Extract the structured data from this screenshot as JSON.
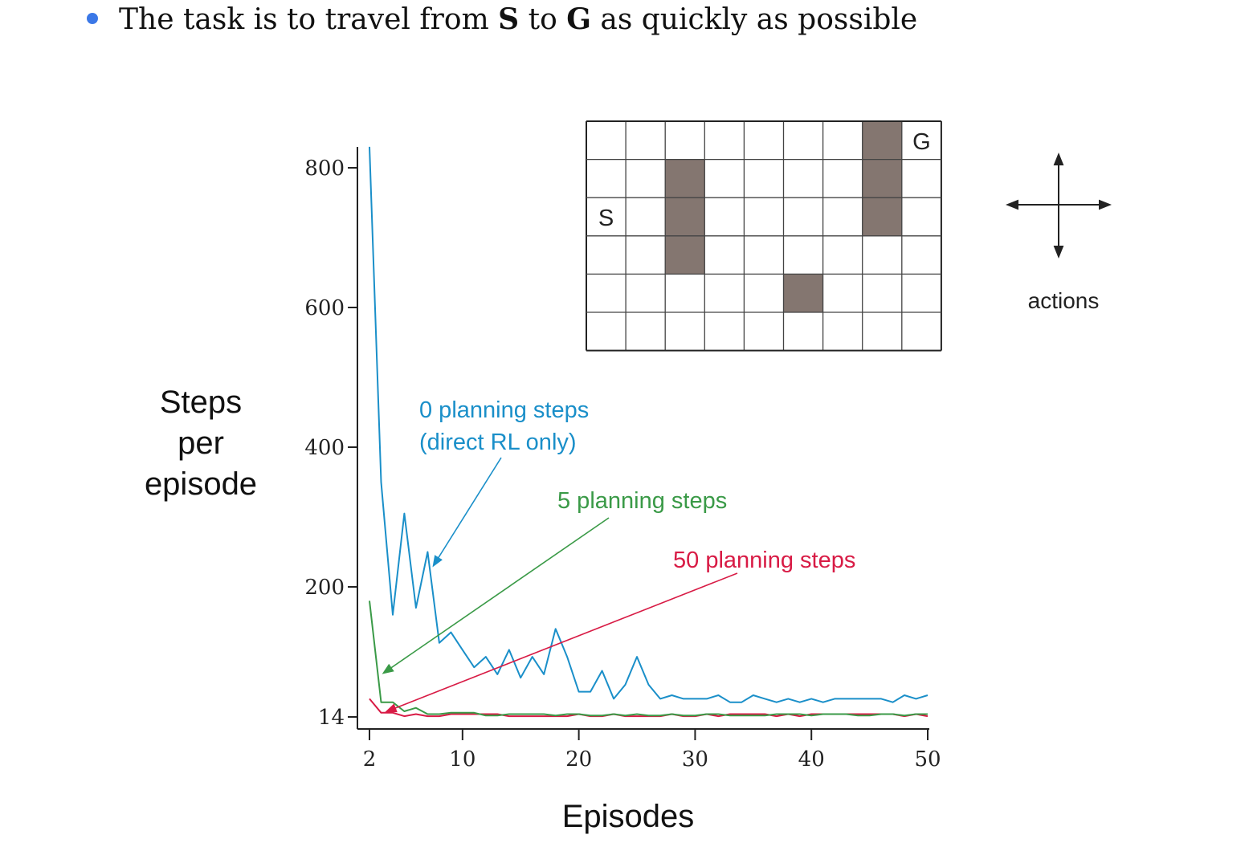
{
  "bullet": {
    "text_before": "The task is to travel from ",
    "start": "S",
    "text_middle": " to ",
    "goal": "G",
    "text_after": " as quickly as possible",
    "color": "#3b78e7"
  },
  "chart_data": {
    "type": "line",
    "xlabel": "Episodes",
    "ylabel_lines": [
      "Steps",
      "per",
      "episode"
    ],
    "x_ticks": [
      2,
      10,
      20,
      30,
      40,
      50
    ],
    "y_ticks": [
      14,
      200,
      400,
      600,
      800
    ],
    "xlim": [
      2,
      50
    ],
    "series": [
      {
        "name": "0 planning steps (direct RL only)",
        "color": "#1a8fc9",
        "x": [
          2,
          3,
          4,
          5,
          6,
          7,
          8,
          9,
          10,
          11,
          12,
          13,
          14,
          15,
          16,
          17,
          18,
          19,
          20,
          21,
          22,
          23,
          24,
          25,
          26,
          27,
          28,
          29,
          30,
          31,
          32,
          33,
          34,
          35,
          36,
          37,
          38,
          39,
          40,
          41,
          42,
          43,
          44,
          45,
          46,
          47,
          48,
          49,
          50
        ],
        "values": [
          830,
          350,
          160,
          305,
          170,
          250,
          120,
          135,
          110,
          85,
          100,
          75,
          110,
          70,
          100,
          75,
          140,
          100,
          50,
          50,
          80,
          40,
          60,
          100,
          60,
          40,
          45,
          40,
          40,
          40,
          45,
          35,
          35,
          45,
          40,
          35,
          40,
          35,
          40,
          35,
          40,
          40,
          40,
          40,
          40,
          35,
          45,
          40,
          45
        ]
      },
      {
        "name": "5 planning steps",
        "color": "#3a9a47",
        "x": [
          2,
          3,
          4,
          5,
          6,
          7,
          8,
          9,
          10,
          11,
          12,
          13,
          14,
          15,
          16,
          17,
          18,
          19,
          20,
          21,
          22,
          23,
          24,
          25,
          26,
          27,
          28,
          29,
          30,
          31,
          32,
          33,
          34,
          35,
          36,
          37,
          38,
          39,
          40,
          41,
          42,
          43,
          44,
          45,
          46,
          47,
          48,
          49,
          50
        ],
        "values": [
          180,
          35,
          35,
          22,
          27,
          18,
          18,
          20,
          20,
          20,
          16,
          16,
          18,
          18,
          18,
          18,
          16,
          18,
          18,
          16,
          16,
          18,
          16,
          18,
          16,
          16,
          18,
          16,
          16,
          18,
          18,
          16,
          16,
          16,
          16,
          18,
          18,
          18,
          16,
          18,
          18,
          18,
          16,
          16,
          18,
          18,
          16,
          18,
          18
        ]
      },
      {
        "name": "50 planning steps",
        "color": "#d81b45",
        "x": [
          2,
          3,
          4,
          5,
          6,
          7,
          8,
          9,
          10,
          11,
          12,
          13,
          14,
          15,
          16,
          17,
          18,
          19,
          20,
          21,
          22,
          23,
          24,
          25,
          26,
          27,
          28,
          29,
          30,
          31,
          32,
          33,
          34,
          35,
          36,
          37,
          38,
          39,
          40,
          41,
          42,
          43,
          44,
          45,
          46,
          47,
          48,
          49,
          50
        ],
        "values": [
          40,
          20,
          20,
          15,
          18,
          15,
          15,
          18,
          18,
          18,
          18,
          18,
          15,
          15,
          15,
          15,
          15,
          15,
          18,
          15,
          15,
          18,
          15,
          15,
          15,
          15,
          18,
          15,
          15,
          18,
          15,
          18,
          18,
          18,
          18,
          15,
          18,
          15,
          18,
          18,
          18,
          18,
          18,
          18,
          18,
          18,
          15,
          18,
          15
        ]
      }
    ],
    "annotations": [
      {
        "series": 0,
        "lines": [
          "0 planning steps",
          "(direct RL only)"
        ],
        "color": "#1a8fc9"
      },
      {
        "series": 1,
        "lines": [
          "5 planning steps"
        ],
        "color": "#3a9a47"
      },
      {
        "series": 2,
        "lines": [
          "50 planning steps"
        ],
        "color": "#d81b45"
      }
    ]
  },
  "gridworld": {
    "cols": 9,
    "rows": 6,
    "start_label": "S",
    "goal_label": "G",
    "start": [
      0,
      2
    ],
    "goal": [
      8,
      0
    ],
    "obstacles": [
      [
        2,
        1
      ],
      [
        2,
        2
      ],
      [
        2,
        3
      ],
      [
        7,
        0
      ],
      [
        7,
        1
      ],
      [
        7,
        2
      ],
      [
        5,
        4
      ]
    ],
    "obstacle_color": "#847670"
  },
  "actions": {
    "label": "actions",
    "icon": "four-way-arrow-icon"
  }
}
